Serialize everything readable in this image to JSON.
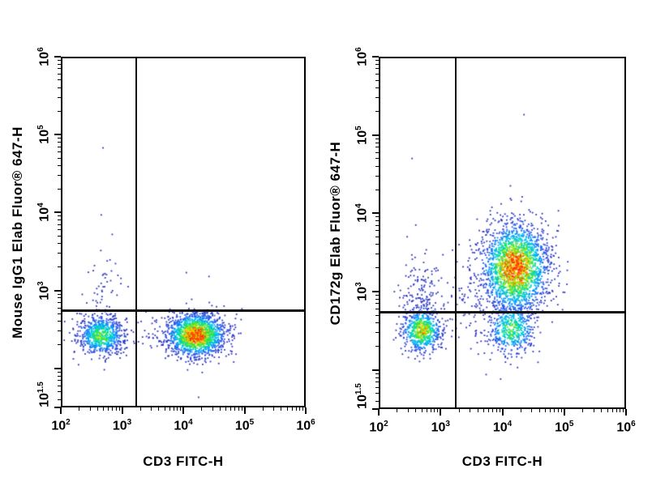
{
  "style": {
    "background": "#ffffff",
    "axis_color": "#000000",
    "gate_color": "#101010",
    "label_color": "#000000",
    "density_colormap": [
      [
        0.0,
        "#2b2bb4"
      ],
      [
        0.18,
        "#2a52e8"
      ],
      [
        0.33,
        "#00a6ff"
      ],
      [
        0.46,
        "#00dcd0"
      ],
      [
        0.58,
        "#1ee04a"
      ],
      [
        0.7,
        "#8cec00"
      ],
      [
        0.8,
        "#ffe400"
      ],
      [
        0.9,
        "#ff8c00"
      ],
      [
        1.0,
        "#ff2a00"
      ]
    ]
  },
  "chart_data": [
    {
      "type": "scatter",
      "panel": "left",
      "xlabel": "CD3 FITC-H",
      "ylabel": "Mouse IgG1 Elab Fluor® 647-H",
      "scale": "log-log",
      "x_log_min": 2,
      "x_log_max": 6,
      "y_log_min": 1.5,
      "y_log_max": 6,
      "tick_base": "10",
      "x_ticks": [
        {
          "log": 2,
          "exp": "2"
        },
        {
          "log": 3,
          "exp": "3"
        },
        {
          "log": 4,
          "exp": "4"
        },
        {
          "log": 5,
          "exp": "5"
        },
        {
          "log": 6,
          "exp": "6"
        }
      ],
      "y_major_logs": [
        6,
        5,
        4,
        3,
        2,
        1.5
      ],
      "y_tick_labels": [
        {
          "log": 6,
          "exp": "6"
        },
        {
          "log": 5,
          "exp": "5"
        },
        {
          "log": 4,
          "exp": "4"
        },
        {
          "log": 3,
          "exp": "3"
        },
        {
          "log": 1.5,
          "exp": "1.5"
        }
      ],
      "quadrant_gate_log": {
        "x": 3.23,
        "y": 2.74
      },
      "populations": [
        {
          "name": "CD3-neg IgG1-neg",
          "cx": 2.66,
          "cy": 2.42,
          "sx": 0.19,
          "sy": 0.13,
          "n": 750,
          "peak": 0.62
        },
        {
          "name": "CD3-pos IgG1-neg",
          "cx": 4.21,
          "cy": 2.43,
          "sx": 0.24,
          "sy": 0.14,
          "n": 1700,
          "peak": 1.0
        },
        {
          "name": "CD3-neg scatter above gate",
          "cx": 2.72,
          "cy": 3.0,
          "sx": 0.14,
          "sy": 0.24,
          "n": 48,
          "peak": 0.05
        },
        {
          "name": "inter-cluster bridge",
          "cx": 3.42,
          "cy": 2.42,
          "sx": 0.28,
          "sy": 0.1,
          "n": 30,
          "peak": 0.04
        }
      ],
      "stray_points_log": [
        [
          2.69,
          4.83
        ],
        [
          2.66,
          3.97
        ],
        [
          2.84,
          3.72
        ],
        [
          2.55,
          3.32
        ],
        [
          4.05,
          3.23
        ],
        [
          4.42,
          3.18
        ],
        [
          4.25,
          1.63
        ],
        [
          2.35,
          2.95
        ],
        [
          3.1,
          3.05
        ]
      ]
    },
    {
      "type": "scatter",
      "panel": "right",
      "xlabel": "CD3 FITC-H",
      "ylabel": "CD172g Elab Fluor® 647-H",
      "scale": "log-log",
      "x_log_min": 2,
      "x_log_max": 6,
      "y_log_min": 1.5,
      "y_log_max": 6,
      "tick_base": "10",
      "x_ticks": [
        {
          "log": 2,
          "exp": "2"
        },
        {
          "log": 3,
          "exp": "3"
        },
        {
          "log": 4,
          "exp": "4"
        },
        {
          "log": 5,
          "exp": "5"
        },
        {
          "log": 6,
          "exp": "6"
        }
      ],
      "y_major_logs": [
        6,
        5,
        4,
        3,
        2,
        1.5
      ],
      "y_tick_labels": [
        {
          "log": 6,
          "exp": "6"
        },
        {
          "log": 5,
          "exp": "5"
        },
        {
          "log": 4,
          "exp": "4"
        },
        {
          "log": 3,
          "exp": "3"
        },
        {
          "log": 1.5,
          "exp": "1.5"
        }
      ],
      "quadrant_gate_log": {
        "x": 3.25,
        "y": 2.74
      },
      "populations": [
        {
          "name": "CD3-neg CD172g-dim",
          "cx": 2.7,
          "cy": 2.5,
          "sx": 0.16,
          "sy": 0.14,
          "n": 650,
          "peak": 0.8
        },
        {
          "name": "CD3-neg scatter above gate",
          "cx": 2.72,
          "cy": 2.98,
          "sx": 0.18,
          "sy": 0.26,
          "n": 150,
          "peak": 0.07
        },
        {
          "name": "CD3-pos CD172g-pos",
          "cx": 4.21,
          "cy": 3.3,
          "sx": 0.27,
          "sy": 0.29,
          "n": 2300,
          "peak": 1.0
        },
        {
          "name": "CD3-pos CD172g-neg tail",
          "cx": 4.15,
          "cy": 2.52,
          "sx": 0.2,
          "sy": 0.17,
          "n": 500,
          "peak": 0.58
        },
        {
          "name": "inter-cluster bridge",
          "cx": 3.55,
          "cy": 2.85,
          "sx": 0.33,
          "sy": 0.28,
          "n": 80,
          "peak": 0.04
        }
      ],
      "stray_points_log": [
        [
          4.35,
          5.26
        ],
        [
          2.54,
          4.7
        ],
        [
          2.46,
          3.7
        ],
        [
          4.13,
          4.35
        ],
        [
          3.98,
          4.12
        ],
        [
          4.45,
          4.02
        ],
        [
          2.6,
          3.85
        ],
        [
          3.3,
          3.6
        ],
        [
          4.7,
          3.9
        ],
        [
          4.9,
          3.2
        ]
      ]
    }
  ]
}
